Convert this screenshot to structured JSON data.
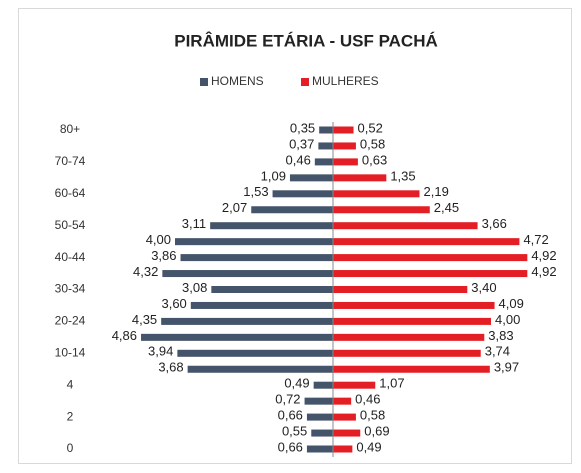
{
  "chart_data": {
    "type": "pyramid",
    "title": "PIRÂMIDE ETÁRIA - USF PACHÁ",
    "categories": [
      "80+",
      null,
      "70-74",
      null,
      "60-64",
      null,
      "50-54",
      null,
      "40-44",
      null,
      "30-34",
      null,
      "20-24",
      null,
      "10-14",
      null,
      "4",
      null,
      "2",
      null,
      "0"
    ],
    "series": [
      {
        "name": "HOMENS",
        "color": "#44546a",
        "values": [
          0.35,
          0.37,
          0.46,
          1.09,
          1.53,
          2.07,
          3.11,
          4.0,
          3.86,
          4.32,
          3.08,
          3.6,
          4.35,
          4.86,
          3.94,
          3.68,
          0.49,
          0.72,
          0.66,
          0.55,
          0.66
        ],
        "value_labels": [
          "0,35",
          "0,37",
          "0,46",
          "1,09",
          "1,53",
          "2,07",
          "3,11",
          "4,00",
          "3,86",
          "4,32",
          "3,08",
          "3,60",
          "4,35",
          "4,86",
          "3,94",
          "3,68",
          "0,49",
          "0,72",
          "0,66",
          "0,55",
          "0,66"
        ]
      },
      {
        "name": "MULHERES",
        "color": "#e31e24",
        "values": [
          0.52,
          0.58,
          0.63,
          1.35,
          2.19,
          2.45,
          3.66,
          4.72,
          4.92,
          4.92,
          3.4,
          4.09,
          4.0,
          3.83,
          3.74,
          3.97,
          1.07,
          0.46,
          0.58,
          0.69,
          0.49
        ],
        "value_labels": [
          "0,52",
          "0,58",
          "0,63",
          "1,35",
          "2,19",
          "2,45",
          "3,66",
          "4,72",
          "4,92",
          "4,92",
          "3,40",
          "4,09",
          "4,00",
          "3,83",
          "3,74",
          "3,97",
          "1,07",
          "0,46",
          "0,58",
          "0,69",
          "0,49"
        ]
      }
    ],
    "legend": "top"
  }
}
